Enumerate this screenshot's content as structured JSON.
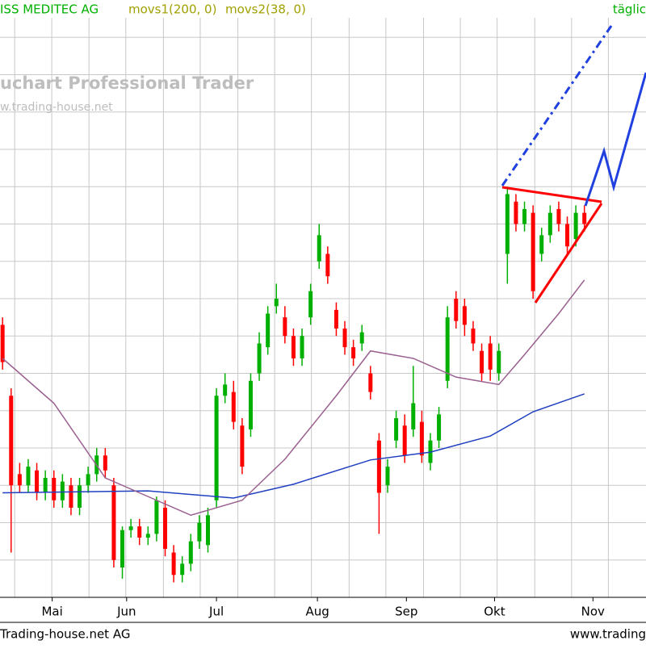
{
  "chart_data": {
    "type": "candlestick",
    "title": "ISS MEDITEC AG",
    "indicators": [
      "movs1(200, 0)",
      "movs2(38, 0)"
    ],
    "period": "täglic",
    "watermark": [
      "uchart Professional Trader",
      "w.trading-house.net"
    ],
    "footer_left": "Trading-house.net AG",
    "footer_right": "www.trading",
    "up_color": "#00b000",
    "down_color": "#ff0000",
    "xlim": [
      -0.3,
      75.2
    ],
    "ylim": [
      0,
      160
    ],
    "ygrid": [
      10,
      20,
      30,
      40,
      50,
      60,
      70,
      80,
      90,
      100,
      110,
      120,
      130,
      140,
      150,
      160
    ],
    "xgrid": [
      1.42,
      5.75,
      10.1,
      14.4,
      18.8,
      23.1,
      27.5,
      31.8,
      36.1,
      40.5,
      44.8,
      49.2,
      53.5,
      57.8,
      62.2,
      66.5,
      70.8
    ],
    "xticks": [
      {
        "value": 5.8,
        "label": "Mai"
      },
      {
        "value": 14.5,
        "label": "Jun"
      },
      {
        "value": 25,
        "label": "Jul"
      },
      {
        "value": 36.8,
        "label": "Aug"
      },
      {
        "value": 47.2,
        "label": "Sep"
      },
      {
        "value": 57.5,
        "label": "Okt"
      },
      {
        "value": 69,
        "label": "Nov"
      }
    ],
    "open": [
      73,
      54,
      33,
      30,
      34,
      28,
      32,
      26,
      30,
      24,
      30,
      33,
      38,
      30,
      8,
      18,
      19,
      16,
      17,
      24,
      12,
      6,
      9,
      15,
      14,
      26,
      54,
      55,
      46,
      45,
      60,
      67,
      78,
      75,
      70,
      64,
      75,
      90,
      92,
      77,
      72,
      67,
      68,
      60,
      42,
      30,
      42,
      46,
      45,
      47,
      36,
      42,
      58,
      80,
      78,
      72,
      66,
      68,
      60,
      92,
      106,
      100,
      103,
      92,
      97,
      104,
      100,
      96,
      103
    ],
    "close": [
      63,
      30,
      30,
      35,
      28,
      32,
      26,
      31,
      24,
      30,
      33,
      38,
      34,
      10,
      18,
      19,
      16,
      17,
      26,
      13,
      6,
      9,
      15,
      20,
      22,
      54,
      57,
      47,
      35,
      58,
      68,
      76,
      80,
      70,
      64,
      70,
      82,
      97,
      86,
      72,
      67,
      64,
      71,
      55,
      28,
      35,
      48,
      38,
      52,
      38,
      42,
      49,
      75,
      74,
      73,
      68,
      60,
      61,
      66,
      108,
      100,
      104,
      82,
      97,
      103,
      100,
      94,
      103,
      100
    ],
    "high": [
      75,
      56,
      36,
      37,
      36,
      34,
      34,
      33,
      32,
      32,
      35,
      40,
      40,
      32,
      19,
      21,
      21,
      19,
      27,
      26,
      14,
      11,
      17,
      22,
      24,
      56,
      60,
      58,
      48,
      60,
      71,
      78,
      84,
      78,
      72,
      72,
      84,
      100,
      94,
      79,
      74,
      69,
      73,
      62,
      44,
      37,
      50,
      49,
      62,
      50,
      44,
      51,
      78,
      82,
      80,
      74,
      68,
      70,
      68,
      110,
      108,
      106,
      105,
      99,
      105,
      106,
      102,
      105,
      105
    ],
    "low": [
      61,
      12,
      28,
      28,
      26,
      26,
      24,
      24,
      22,
      22,
      28,
      31,
      32,
      8,
      5,
      16,
      14,
      14,
      15,
      11,
      4,
      4,
      7,
      13,
      12,
      24,
      52,
      45,
      33,
      43,
      58,
      65,
      76,
      68,
      62,
      62,
      73,
      88,
      84,
      70,
      65,
      62,
      66,
      53,
      17,
      28,
      40,
      36,
      43,
      36,
      34,
      40,
      56,
      72,
      70,
      66,
      58,
      58,
      58,
      84,
      98,
      98,
      80,
      90,
      95,
      98,
      92,
      94,
      98
    ],
    "series": [
      {
        "name": "movs1(200, 0)",
        "color": "#2040c0",
        "x": [
          0,
          17,
          27,
          34,
          43,
          50,
          57,
          62,
          68
        ],
        "values": [
          28,
          28.5,
          26.6,
          30.3,
          36.8,
          38.9,
          43.2,
          49.7,
          54.5
        ]
      },
      {
        "name": "movs2(38, 0)",
        "color": "#9a6090",
        "x": [
          0,
          6,
          12,
          18,
          22,
          28,
          33,
          39,
          43,
          48,
          53,
          58,
          61,
          65,
          68
        ],
        "values": [
          64,
          52,
          32,
          26,
          22,
          26,
          37,
          54,
          66,
          64,
          59,
          57,
          65,
          76,
          85
        ]
      }
    ]
  }
}
